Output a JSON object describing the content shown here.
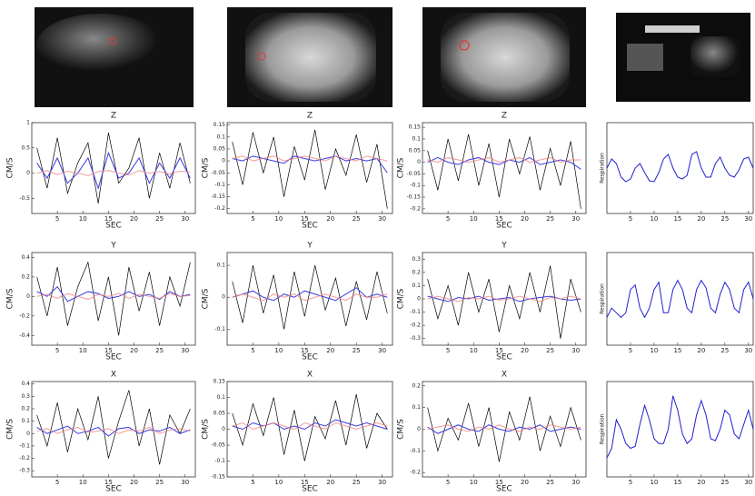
{
  "chart_data": [
    {
      "type": "line",
      "title": "Z",
      "x_label": "SEC",
      "y_label": "CM/S",
      "x": [
        1,
        3,
        5,
        7,
        9,
        11,
        13,
        15,
        17,
        19,
        21,
        23,
        25,
        27,
        29,
        31
      ],
      "xlim": [
        0,
        32
      ],
      "xticks": [
        5,
        10,
        15,
        20,
        25,
        30
      ],
      "ylim": [
        -0.8,
        1
      ],
      "yticks": [
        1,
        0.5,
        0,
        -0.5
      ],
      "series": [
        {
          "color": "#000000",
          "values": [
            0.5,
            -0.3,
            0.7,
            -0.4,
            0.2,
            0.6,
            -0.6,
            0.8,
            -0.2,
            0.1,
            0.7,
            -0.5,
            0.4,
            -0.3,
            0.6,
            -0.2
          ]
        },
        {
          "color": "#3a3ae0",
          "values": [
            0.2,
            -0.1,
            0.3,
            -0.2,
            0,
            0.3,
            -0.3,
            0.4,
            -0.1,
            0,
            0.3,
            -0.2,
            0.2,
            -0.1,
            0.3,
            -0.1
          ]
        },
        {
          "color": "#f08080",
          "values": [
            0,
            0.05,
            -0.03,
            0.04,
            0,
            -0.05,
            0.03,
            0.05,
            0,
            -0.04,
            0.05,
            0,
            0.03,
            -0.02,
            0.04,
            0.02
          ]
        }
      ]
    },
    {
      "type": "line",
      "title": "Z",
      "x_label": "SEC",
      "y_label": "CM/S",
      "x": [
        1,
        3,
        5,
        7,
        9,
        11,
        13,
        15,
        17,
        19,
        21,
        23,
        25,
        27,
        29,
        31
      ],
      "xlim": [
        0,
        32
      ],
      "xticks": [
        5,
        10,
        15,
        20,
        25,
        30
      ],
      "ylim": [
        -0.22,
        0.16
      ],
      "yticks": [
        0.15,
        0.1,
        0.05,
        0,
        -0.05,
        -0.1,
        -0.15,
        -0.2
      ],
      "series": [
        {
          "color": "#000000",
          "values": [
            0.08,
            -0.1,
            0.12,
            -0.05,
            0.1,
            -0.15,
            0.06,
            -0.08,
            0.13,
            -0.12,
            0.05,
            -0.06,
            0.11,
            -0.09,
            0.07,
            -0.2
          ]
        },
        {
          "color": "#3a3ae0",
          "values": [
            0.01,
            0,
            0.02,
            0.01,
            0,
            -0.01,
            0.02,
            0.01,
            0,
            0.01,
            0.02,
            0,
            0.01,
            0,
            0.01,
            -0.05
          ]
        },
        {
          "color": "#f08080",
          "values": [
            0.01,
            0.02,
            0,
            0.01,
            0.02,
            0,
            0.01,
            0.02,
            0.01,
            0,
            0.02,
            0.01,
            0,
            0.02,
            0.01,
            0
          ]
        }
      ]
    },
    {
      "type": "line",
      "title": "Z",
      "x_label": "SEC",
      "y_label": "CM/S",
      "x": [
        1,
        3,
        5,
        7,
        9,
        11,
        13,
        15,
        17,
        19,
        21,
        23,
        25,
        27,
        29,
        31
      ],
      "xlim": [
        0,
        32
      ],
      "xticks": [
        5,
        10,
        15,
        20,
        25,
        30
      ],
      "ylim": [
        -0.22,
        0.17
      ],
      "yticks": [
        0.15,
        0.1,
        0.05,
        0,
        -0.05,
        -0.1,
        -0.15,
        -0.2
      ],
      "series": [
        {
          "color": "#000000",
          "values": [
            0.05,
            -0.12,
            0.1,
            -0.08,
            0.12,
            -0.1,
            0.08,
            -0.15,
            0.1,
            -0.05,
            0.11,
            -0.12,
            0.06,
            -0.1,
            0.09,
            -0.2
          ]
        },
        {
          "color": "#3a3ae0",
          "values": [
            0,
            0.02,
            0,
            -0.01,
            0.01,
            0.02,
            0,
            -0.01,
            0.01,
            0,
            0.02,
            -0.01,
            0,
            0.01,
            0,
            -0.03
          ]
        },
        {
          "color": "#f08080",
          "values": [
            0.01,
            0,
            0.02,
            0.01,
            0,
            0.01,
            0.02,
            0,
            0.01,
            0.02,
            0,
            0.01,
            0.02,
            0,
            0.01,
            0.01
          ]
        }
      ]
    },
    {
      "type": "line",
      "y_label": "Respiration",
      "x": [
        0,
        1,
        2,
        3,
        4,
        5,
        6,
        7,
        8,
        9,
        10,
        11,
        12,
        13,
        14,
        15,
        16,
        17,
        18,
        19,
        20,
        21,
        22,
        23,
        24,
        25,
        26,
        27,
        28,
        29,
        30,
        31
      ],
      "xlim": [
        0,
        31
      ],
      "xticks": [
        5,
        10,
        15,
        20,
        25,
        30
      ],
      "ylim": [
        0,
        10
      ],
      "yticks": [],
      "series": [
        {
          "color": "#1f1fd0",
          "values": [
            5,
            6,
            5.5,
            4,
            3.5,
            3.8,
            5,
            5.5,
            4.5,
            3.6,
            3.5,
            4.5,
            6,
            6.5,
            5,
            4,
            3.8,
            4.2,
            6.5,
            6.8,
            5,
            4,
            4,
            5.5,
            6.2,
            5,
            4.2,
            4,
            4.8,
            6,
            6.2,
            5
          ]
        }
      ]
    },
    {
      "type": "line",
      "title": "Y",
      "x_label": "SEC",
      "y_label": "CM/S",
      "x": [
        1,
        3,
        5,
        7,
        9,
        11,
        13,
        15,
        17,
        19,
        21,
        23,
        25,
        27,
        29,
        31
      ],
      "xlim": [
        0,
        32
      ],
      "xticks": [
        5,
        10,
        15,
        20,
        25,
        30
      ],
      "ylim": [
        -0.5,
        0.45
      ],
      "yticks": [
        0.4,
        0.2,
        0,
        -0.2,
        -0.4
      ],
      "series": [
        {
          "color": "#000000",
          "values": [
            0.2,
            -0.2,
            0.3,
            -0.3,
            0.1,
            0.35,
            -0.25,
            0.2,
            -0.4,
            0.3,
            -0.15,
            0.25,
            -0.3,
            0.2,
            -0.1,
            0.35
          ]
        },
        {
          "color": "#3a3ae0",
          "values": [
            0.05,
            0,
            0.1,
            -0.05,
            0,
            0.05,
            0.03,
            -0.02,
            0,
            0.05,
            0,
            0.02,
            -0.03,
            0.05,
            0,
            0.02
          ]
        },
        {
          "color": "#f08080",
          "values": [
            0,
            0.02,
            -0.02,
            0.03,
            0,
            -0.03,
            0.02,
            0,
            0.03,
            -0.02,
            0.02,
            0,
            -0.02,
            0.03,
            0,
            0.01
          ]
        }
      ]
    },
    {
      "type": "line",
      "title": "Y",
      "x_label": "SEC",
      "y_label": "CM/S",
      "x": [
        1,
        3,
        5,
        7,
        9,
        11,
        13,
        15,
        17,
        19,
        21,
        23,
        25,
        27,
        29,
        31
      ],
      "xlim": [
        0,
        32
      ],
      "xticks": [
        5,
        10,
        15,
        20,
        25,
        30
      ],
      "ylim": [
        -0.15,
        0.14
      ],
      "yticks": [
        0.1,
        0,
        -0.1
      ],
      "series": [
        {
          "color": "#000000",
          "values": [
            0.05,
            -0.08,
            0.1,
            -0.05,
            0.07,
            -0.1,
            0.08,
            -0.06,
            0.1,
            -0.04,
            0.06,
            -0.09,
            0.05,
            -0.07,
            0.08,
            -0.05
          ]
        },
        {
          "color": "#3a3ae0",
          "values": [
            0,
            0.01,
            0.02,
            0,
            -0.01,
            0.01,
            0,
            0.02,
            0.01,
            0,
            -0.01,
            0.01,
            0.03,
            0,
            0.01,
            0
          ]
        },
        {
          "color": "#f08080",
          "values": [
            0,
            0.01,
            0,
            -0.01,
            0.01,
            0,
            0.01,
            -0.01,
            0,
            0.01,
            0,
            -0.01,
            0.01,
            0,
            0,
            0.01
          ]
        }
      ]
    },
    {
      "type": "line",
      "title": "Y",
      "x_label": "SEC",
      "y_label": "CM/S",
      "x": [
        1,
        3,
        5,
        7,
        9,
        11,
        13,
        15,
        17,
        19,
        21,
        23,
        25,
        27,
        29,
        31
      ],
      "xlim": [
        0,
        32
      ],
      "xticks": [
        5,
        10,
        15,
        20,
        25,
        30
      ],
      "ylim": [
        -0.35,
        0.35
      ],
      "yticks": [
        0.3,
        0.2,
        0.1,
        0,
        -0.1,
        -0.2,
        -0.3
      ],
      "series": [
        {
          "color": "#000000",
          "values": [
            0.15,
            -0.15,
            0.1,
            -0.2,
            0.2,
            -0.1,
            0.15,
            -0.25,
            0.1,
            -0.15,
            0.2,
            -0.1,
            0.25,
            -0.3,
            0.15,
            -0.1
          ]
        },
        {
          "color": "#3a3ae0",
          "values": [
            0.02,
            0,
            -0.02,
            0.01,
            0,
            0.02,
            -0.01,
            0,
            0.01,
            -0.02,
            0,
            0.01,
            0.02,
            0,
            -0.01,
            0
          ]
        },
        {
          "color": "#f08080",
          "values": [
            0,
            0.02,
            0,
            -0.02,
            0.01,
            0,
            0.02,
            -0.01,
            0,
            0.02,
            0,
            -0.02,
            0.01,
            0,
            0.02,
            0
          ]
        }
      ]
    },
    {
      "type": "line",
      "y_label": "Respiration",
      "x": [
        0,
        1,
        2,
        3,
        4,
        5,
        6,
        7,
        8,
        9,
        10,
        11,
        12,
        13,
        14,
        15,
        16,
        17,
        18,
        19,
        20,
        21,
        22,
        23,
        24,
        25,
        26,
        27,
        28,
        29,
        30,
        31
      ],
      "xlim": [
        0,
        31
      ],
      "xticks": [
        5,
        10,
        15,
        20,
        25,
        30
      ],
      "ylim": [
        0,
        10
      ],
      "yticks": [],
      "series": [
        {
          "color": "#1f1fd0",
          "values": [
            3,
            4,
            3.5,
            3,
            3.5,
            6,
            6.5,
            4,
            3,
            4,
            6,
            6.8,
            3.5,
            3.5,
            6,
            7,
            6,
            4,
            3.5,
            6,
            7,
            6.2,
            4,
            3.5,
            5.5,
            6.8,
            6,
            4,
            3.5,
            6,
            6.8,
            5
          ]
        }
      ]
    },
    {
      "type": "line",
      "title": "X",
      "x_label": "SEC",
      "y_label": "CM/S",
      "x": [
        1,
        3,
        5,
        7,
        9,
        11,
        13,
        15,
        17,
        19,
        21,
        23,
        25,
        27,
        29,
        31
      ],
      "xlim": [
        0,
        32
      ],
      "xticks": [
        5,
        10,
        15,
        20,
        25,
        30
      ],
      "ylim": [
        -0.35,
        0.42
      ],
      "yticks": [
        0.4,
        0.3,
        0.2,
        0.1,
        0,
        -0.1,
        -0.2,
        -0.3
      ],
      "series": [
        {
          "color": "#000000",
          "values": [
            0.15,
            -0.1,
            0.25,
            -0.15,
            0.2,
            -0.05,
            0.3,
            -0.2,
            0.1,
            0.35,
            -0.1,
            0.2,
            -0.25,
            0.15,
            0,
            0.2
          ]
        },
        {
          "color": "#3a3ae0",
          "values": [
            0.05,
            0,
            0.03,
            0.06,
            0,
            0.02,
            0.05,
            -0.02,
            0.04,
            0.05,
            0,
            0.03,
            0.02,
            0.05,
            0,
            0.03
          ]
        },
        {
          "color": "#f08080",
          "values": [
            0.02,
            0.04,
            0,
            0.03,
            0.05,
            0.01,
            0.02,
            0.04,
            0,
            0.03,
            0.02,
            0.05,
            0,
            0.03,
            0.04,
            0.02
          ]
        }
      ]
    },
    {
      "type": "line",
      "title": "X",
      "x_label": "SEC",
      "y_label": "CM/S",
      "x": [
        1,
        3,
        5,
        7,
        9,
        11,
        13,
        15,
        17,
        19,
        21,
        23,
        25,
        27,
        29,
        31
      ],
      "xlim": [
        0,
        32
      ],
      "xticks": [
        5,
        10,
        15,
        20,
        25,
        30
      ],
      "ylim": [
        -0.15,
        0.15
      ],
      "yticks": [
        0.15,
        0.1,
        0.05,
        0,
        -0.05,
        -0.1,
        -0.15
      ],
      "series": [
        {
          "color": "#000000",
          "values": [
            0.05,
            -0.05,
            0.08,
            -0.02,
            0.1,
            -0.08,
            0.06,
            -0.1,
            0.04,
            -0.03,
            0.09,
            -0.05,
            0.11,
            -0.06,
            0.05,
            0
          ]
        },
        {
          "color": "#3a3ae0",
          "values": [
            0.01,
            0,
            0.02,
            0.01,
            0.02,
            0,
            0.01,
            0,
            0.02,
            0.01,
            0.03,
            0.02,
            0.01,
            0.02,
            0.01,
            0
          ]
        },
        {
          "color": "#f08080",
          "values": [
            0.01,
            0.02,
            0,
            0.01,
            0.02,
            0.01,
            0,
            0.02,
            0.01,
            0,
            0.02,
            0.01,
            0,
            0.01,
            0.02,
            0.01
          ]
        }
      ]
    },
    {
      "type": "line",
      "title": "X",
      "x_label": "SEC",
      "y_label": "CM/S",
      "x": [
        1,
        3,
        5,
        7,
        9,
        11,
        13,
        15,
        17,
        19,
        21,
        23,
        25,
        27,
        29,
        31
      ],
      "xlim": [
        0,
        32
      ],
      "xticks": [
        5,
        10,
        15,
        20,
        25,
        30
      ],
      "ylim": [
        -0.22,
        0.22
      ],
      "yticks": [
        0.2,
        0.1,
        0,
        -0.1,
        -0.2
      ],
      "series": [
        {
          "color": "#000000",
          "values": [
            0.1,
            -0.1,
            0.05,
            -0.05,
            0.12,
            -0.08,
            0.1,
            -0.15,
            0.08,
            -0.05,
            0.15,
            -0.1,
            0.06,
            -0.08,
            0.1,
            -0.05
          ]
        },
        {
          "color": "#3a3ae0",
          "values": [
            0.01,
            -0.02,
            0,
            0.02,
            0,
            -0.01,
            0.02,
            0,
            -0.01,
            0.01,
            0,
            0.02,
            -0.01,
            0,
            0.01,
            0
          ]
        },
        {
          "color": "#f08080",
          "values": [
            0,
            0.01,
            0.02,
            0,
            -0.01,
            0.01,
            0,
            0.02,
            0,
            -0.01,
            0.01,
            0,
            0.02,
            0.01,
            0,
            0.01
          ]
        }
      ]
    },
    {
      "type": "line",
      "y_label": "Respiration",
      "x": [
        0,
        1,
        2,
        3,
        4,
        5,
        6,
        7,
        8,
        9,
        10,
        11,
        12,
        13,
        14,
        15,
        16,
        17,
        18,
        19,
        20,
        21,
        22,
        23,
        24,
        25,
        26,
        27,
        28,
        29,
        30,
        31
      ],
      "xlim": [
        0,
        31
      ],
      "xticks": [
        5,
        10,
        15,
        20,
        25,
        30
      ],
      "ylim": [
        0,
        10
      ],
      "yticks": [],
      "series": [
        {
          "color": "#1f1fd0",
          "values": [
            2,
            3,
            6,
            5,
            3.5,
            3,
            3.2,
            5.5,
            7.5,
            6,
            4,
            3.5,
            3.5,
            5,
            8.5,
            7,
            4.5,
            3.5,
            4,
            6.5,
            8,
            6.5,
            4,
            3.8,
            5,
            7,
            6.5,
            4.5,
            4,
            5.5,
            7,
            5
          ]
        }
      ]
    }
  ]
}
